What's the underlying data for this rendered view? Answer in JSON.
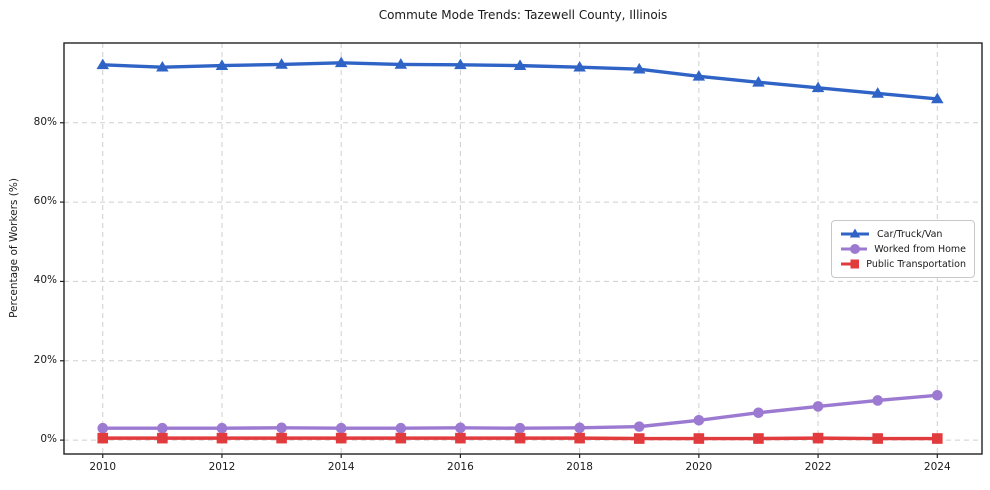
{
  "chart_data": {
    "type": "line",
    "title": "Commute Mode Trends: Tazewell County, Illinois",
    "xlabel": "",
    "ylabel": "Percentage of Workers (%)",
    "x": [
      2010,
      2011,
      2012,
      2013,
      2014,
      2015,
      2016,
      2017,
      2018,
      2019,
      2020,
      2021,
      2022,
      2023,
      2024
    ],
    "series": [
      {
        "name": "Car/Truck/Van",
        "color": "#2f63c6",
        "marker": "triangle",
        "values": [
          94.6,
          94.0,
          94.4,
          94.7,
          95.1,
          94.7,
          94.6,
          94.4,
          94.0,
          93.5,
          91.7,
          90.2,
          88.8,
          87.4,
          86.0
        ]
      },
      {
        "name": "Worked from Home",
        "color": "#9c7ad1",
        "marker": "circle",
        "values": [
          3.0,
          3.0,
          3.0,
          3.1,
          3.0,
          3.0,
          3.1,
          3.0,
          3.1,
          3.4,
          5.0,
          6.9,
          8.5,
          10.0,
          11.3
        ]
      },
      {
        "name": "Public Transportation",
        "color": "#e23b3e",
        "marker": "square",
        "values": [
          0.5,
          0.5,
          0.5,
          0.5,
          0.5,
          0.5,
          0.5,
          0.5,
          0.5,
          0.4,
          0.4,
          0.4,
          0.5,
          0.4,
          0.4
        ]
      }
    ],
    "xticks": [
      2010,
      2012,
      2014,
      2016,
      2018,
      2020,
      2022,
      2024
    ],
    "xtick_labels": [
      "2010",
      "2012",
      "2014",
      "2016",
      "2018",
      "2020",
      "2022",
      "2024"
    ],
    "yticks": [
      0,
      20,
      40,
      60,
      80
    ],
    "ytick_labels": [
      "0%",
      "20%",
      "40%",
      "60%",
      "80%"
    ],
    "xlim": [
      2009.35,
      2024.75
    ],
    "ylim": [
      -3.5,
      100.1
    ],
    "grid": true,
    "grid_color": "#cfcfcf",
    "axis_color": "#222222",
    "legend_position": "right-middle"
  }
}
